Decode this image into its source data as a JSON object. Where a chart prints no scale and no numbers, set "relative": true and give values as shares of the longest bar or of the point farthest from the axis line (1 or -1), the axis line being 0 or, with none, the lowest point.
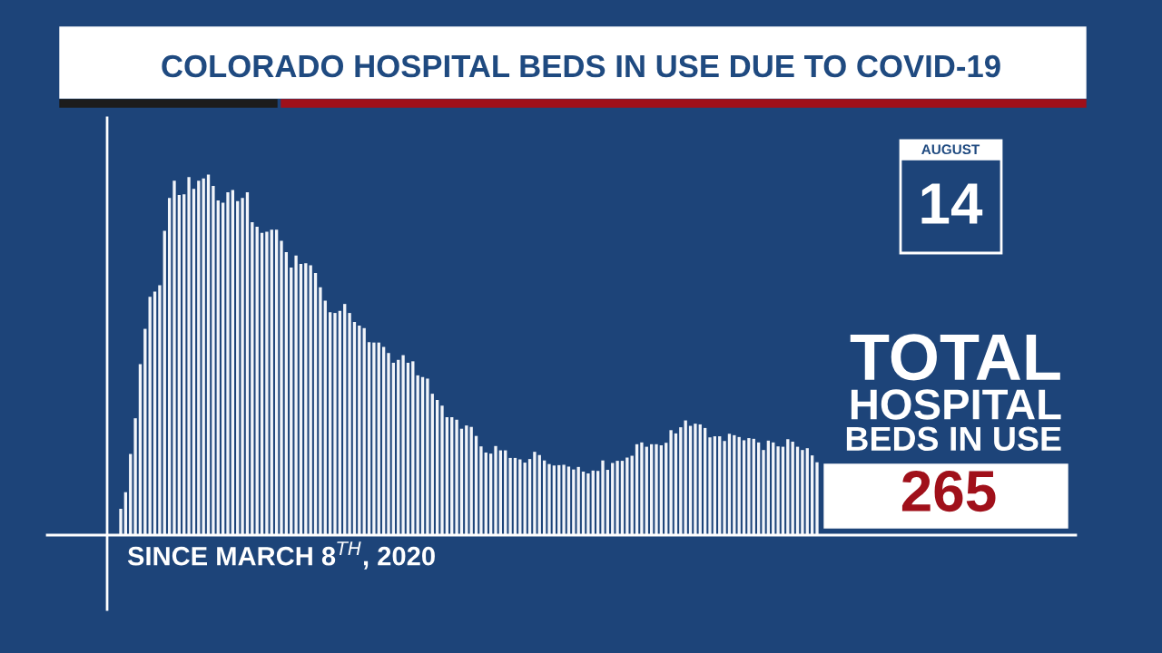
{
  "chart_data": {
    "type": "bar",
    "title": "COLORADO HOSPITAL BEDS IN USE DUE TO COVID-19",
    "xlabel": "SINCE MARCH 8$^{TH}$, 2020",
    "relative": true,
    "color": "#f2f5fa",
    "categories": [
      null,
      null,
      null,
      null,
      null,
      null,
      null,
      null,
      null,
      null,
      null,
      null,
      null,
      null,
      null,
      null,
      null,
      null,
      null,
      null,
      null,
      null,
      null,
      null,
      null,
      null,
      null,
      null,
      null,
      null,
      null,
      null,
      null,
      null,
      null,
      null,
      null,
      null,
      null,
      null,
      null,
      null,
      null,
      null,
      null,
      null,
      null,
      null,
      null,
      null,
      null,
      null,
      null,
      null,
      null,
      null,
      null,
      null,
      null,
      null,
      null,
      null,
      null,
      null,
      null,
      null,
      null,
      null,
      null,
      null,
      null,
      null,
      null,
      null,
      null,
      null,
      null,
      null,
      null,
      null,
      null,
      null,
      null,
      null,
      null,
      null,
      null,
      null,
      null,
      null,
      null,
      null,
      null,
      null,
      null,
      null,
      null,
      null,
      null,
      null,
      null,
      null,
      null,
      null,
      null,
      null,
      null,
      null,
      null,
      null,
      null,
      null,
      null,
      null,
      null,
      null,
      null,
      null,
      null,
      null,
      null,
      null,
      null,
      null,
      null,
      null,
      null,
      null,
      null,
      null,
      null,
      null,
      null,
      null,
      null,
      null,
      null,
      null,
      null,
      null,
      null,
      null,
      null,
      null
    ],
    "values": [
      0.073,
      0.119,
      0.225,
      0.324,
      0.474,
      0.572,
      0.661,
      0.675,
      0.693,
      0.844,
      0.935,
      0.983,
      0.943,
      0.945,
      0.993,
      0.96,
      0.983,
      0.989,
      1.0,
      0.968,
      0.928,
      0.922,
      0.951,
      0.957,
      0.926,
      0.935,
      0.951,
      0.868,
      0.855,
      0.838,
      0.841,
      0.847,
      0.847,
      0.816,
      0.785,
      0.742,
      0.775,
      0.752,
      0.754,
      0.748,
      0.727,
      0.687,
      0.65,
      0.618,
      0.616,
      0.622,
      0.641,
      0.616,
      0.591,
      0.581,
      0.574,
      0.535,
      0.534,
      0.534,
      0.522,
      0.505,
      0.478,
      0.486,
      0.499,
      0.478,
      0.482,
      0.443,
      0.438,
      0.434,
      0.392,
      0.375,
      0.359,
      0.327,
      0.327,
      0.32,
      0.295,
      0.304,
      0.3,
      0.275,
      0.246,
      0.229,
      0.226,
      0.247,
      0.235,
      0.235,
      0.214,
      0.214,
      0.21,
      0.201,
      0.211,
      0.231,
      0.222,
      0.207,
      0.197,
      0.193,
      0.194,
      0.195,
      0.19,
      0.182,
      0.189,
      0.176,
      0.171,
      0.179,
      0.178,
      0.207,
      0.181,
      0.2,
      0.206,
      0.206,
      0.215,
      0.22,
      0.252,
      0.257,
      0.245,
      0.252,
      0.252,
      0.249,
      0.256,
      0.291,
      0.282,
      0.299,
      0.318,
      0.303,
      0.309,
      0.307,
      0.297,
      0.271,
      0.274,
      0.274,
      0.261,
      0.281,
      0.277,
      0.272,
      0.263,
      0.269,
      0.267,
      0.257,
      0.236,
      0.262,
      0.257,
      0.246,
      0.245,
      0.266,
      0.259,
      0.245,
      0.236,
      0.241,
      0.221,
      0.202
    ],
    "annotations": [
      "AUGUST",
      "14",
      "TOTAL",
      "HOSPITAL",
      "BEDS IN USE",
      "265"
    ]
  }
}
